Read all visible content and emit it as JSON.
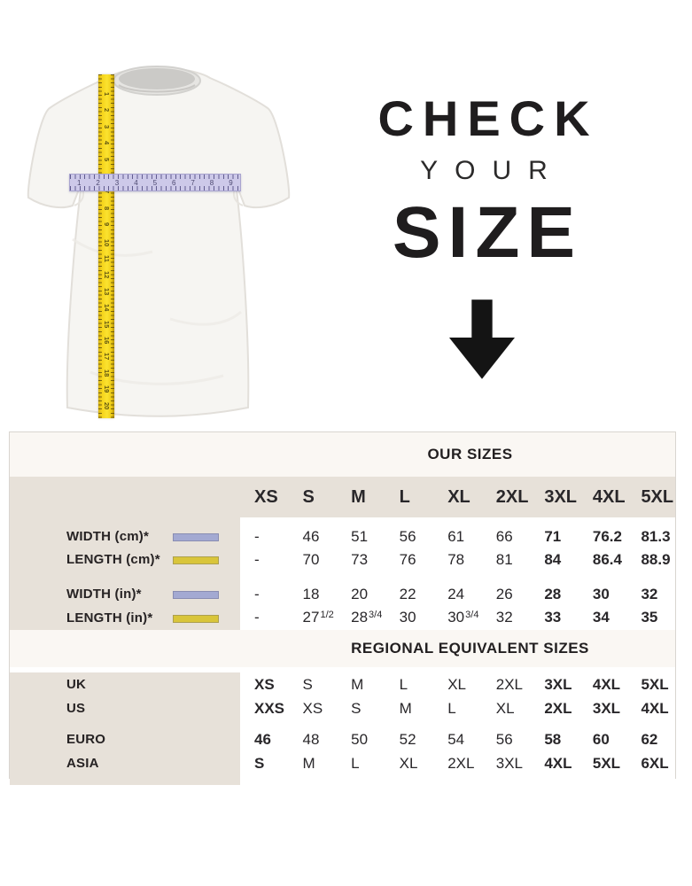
{
  "colors": {
    "beige_panel": "#e7e1d9",
    "header_band": "#faf7f3",
    "table_border": "#d9d5d0",
    "text_dark": "#262223",
    "swatch_purple": "#a3a9d2",
    "swatch_yellow": "#d9c53a",
    "tape_yellow": "#f6d51d",
    "ruler_lavender": "#cdc9e9",
    "arrow_black": "#141414"
  },
  "hero": {
    "title_line1": "CHECK",
    "title_line2": "YOUR",
    "title_line3": "SIZE",
    "down_arrow_icon": "down-arrow",
    "vertical_tape_numbers": [
      "1",
      "2",
      "3",
      "4",
      "5",
      "6",
      "7",
      "8",
      "9",
      "10",
      "11",
      "12",
      "13",
      "14",
      "15",
      "16",
      "17",
      "18",
      "19",
      "20"
    ],
    "horizontal_ruler_numbers": [
      "1",
      "2",
      "3",
      "4",
      "5",
      "6",
      "7",
      "8",
      "9"
    ]
  },
  "table": {
    "our_sizes_title": "OUR SIZES",
    "regional_title": "REGIONAL EQUIVALENT SIZES",
    "size_headers": [
      "XS",
      "S",
      "M",
      "L",
      "XL",
      "2XL",
      "3XL",
      "4XL",
      "5XL"
    ],
    "measure_rows": [
      {
        "label": "WIDTH (cm)*",
        "swatch": "purple",
        "values": [
          "-",
          "46",
          "51",
          "56",
          "61",
          "66",
          "71",
          "76.2",
          "81.3"
        ],
        "bold_cols": [
          6,
          7,
          8
        ]
      },
      {
        "label": "LENGTH (cm)*",
        "swatch": "yellow",
        "values": [
          "-",
          "70",
          "73",
          "76",
          "78",
          "81",
          "84",
          "86.4",
          "88.9"
        ],
        "bold_cols": [
          6,
          7,
          8
        ]
      },
      {
        "label": "WIDTH (in)*",
        "swatch": "purple",
        "values": [
          "-",
          "18",
          "20",
          "22",
          "24",
          "26",
          "28",
          "30",
          "32"
        ],
        "bold_cols": [
          6,
          7,
          8
        ]
      },
      {
        "label": "LENGTH (in)*",
        "swatch": "yellow",
        "values": [
          "-",
          "27 1/2",
          "28 3/4",
          "30",
          "30 3/4",
          "32",
          "33",
          "34",
          "35"
        ],
        "bold_cols": [
          6,
          7,
          8
        ]
      }
    ],
    "regional_rows": [
      {
        "label": "UK",
        "values": [
          "XS",
          "S",
          "M",
          "L",
          "XL",
          "2XL",
          "3XL",
          "4XL",
          "5XL"
        ],
        "bold_cols": [
          0,
          6,
          7,
          8
        ]
      },
      {
        "label": "US",
        "values": [
          "XXS",
          "XS",
          "S",
          "M",
          "L",
          "XL",
          "2XL",
          "3XL",
          "4XL"
        ],
        "bold_cols": [
          0,
          6,
          7,
          8
        ]
      },
      {
        "label": "EURO",
        "values": [
          "46",
          "48",
          "50",
          "52",
          "54",
          "56",
          "58",
          "60",
          "62"
        ],
        "bold_cols": [
          0,
          6,
          7,
          8
        ]
      },
      {
        "label": "ASIA",
        "values": [
          "S",
          "M",
          "L",
          "XL",
          "2XL",
          "3XL",
          "4XL",
          "5XL",
          "6XL"
        ],
        "bold_cols": [
          0,
          6,
          7,
          8
        ]
      }
    ]
  }
}
